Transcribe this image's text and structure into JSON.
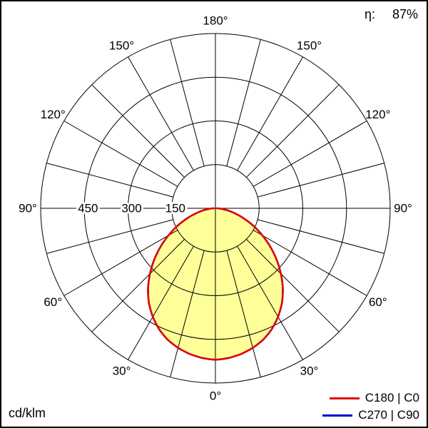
{
  "chart_data": {
    "type": "polar",
    "unit": "cd/klm",
    "efficiency": {
      "label": "η:",
      "value": "87%"
    },
    "rmax": 600,
    "grid": {
      "radial_ticks": [
        150,
        300,
        450,
        600
      ],
      "radial_tick_labels": [
        "150",
        "300",
        "450"
      ],
      "angle_step_deg": 15,
      "angle_label_step_deg": 30,
      "angle_labels": [
        "0°",
        "30°",
        "60°",
        "90°",
        "120°",
        "150°",
        "180°"
      ]
    },
    "legend": [
      {
        "label": "C180 | C0",
        "color": "#e60000"
      },
      {
        "label": "C270 | C90",
        "color": "#0000cc"
      }
    ],
    "series": [
      {
        "name": "C180 | C0",
        "color": "#e60000",
        "fill": "#ffff99",
        "gamma_deg": [
          0,
          5,
          10,
          15,
          20,
          25,
          30,
          35,
          40,
          45,
          50,
          55,
          60,
          65,
          70,
          75,
          80,
          85,
          90
        ],
        "values": [
          520,
          516,
          508,
          496,
          480,
          458,
          430,
          398,
          360,
          318,
          274,
          230,
          186,
          145,
          106,
          72,
          44,
          20,
          6
        ]
      },
      {
        "name": "C270 | C90",
        "color": "#0000cc",
        "fill": "none",
        "gamma_deg": [
          0,
          5,
          10,
          15,
          20,
          25,
          30,
          35,
          40,
          45,
          50,
          55,
          60,
          65,
          70,
          75,
          80,
          85,
          90
        ],
        "values": [
          520,
          516,
          508,
          496,
          480,
          458,
          430,
          398,
          360,
          318,
          274,
          230,
          186,
          145,
          106,
          72,
          44,
          20,
          6
        ]
      }
    ]
  }
}
